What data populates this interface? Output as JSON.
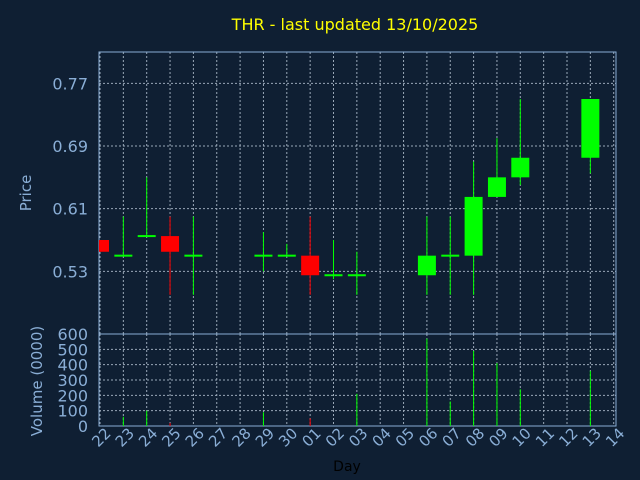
{
  "chart_data": {
    "type": "candlestick",
    "title": "THR - last updated 13/10/2025",
    "xlabel": "Day",
    "price_axis": {
      "ylabel": "Price",
      "ylim": [
        0.45,
        0.81
      ],
      "ticks": [
        "0.53",
        "0.61",
        "0.69",
        "0.77"
      ]
    },
    "volume_axis": {
      "ylabel": "Volume (0000)",
      "ylim": [
        0,
        600
      ],
      "ticks": [
        "0",
        "100",
        "200",
        "300",
        "400",
        "500",
        "600"
      ]
    },
    "grid": true,
    "colors": {
      "background": "#0f1f33",
      "plot_bg": "#0f1f33",
      "up": "#00ff00",
      "down": "#ff0000",
      "title": "#ffff00",
      "axis_text": "#8aaed6",
      "grid": "#9aa8b8"
    },
    "days": [
      {
        "label": "22",
        "open": 0.57,
        "high": 0.57,
        "low": 0.555,
        "close": 0.555,
        "volume": 0
      },
      {
        "label": "23",
        "open": 0.55,
        "high": 0.6,
        "low": 0.55,
        "close": 0.55,
        "volume": 60
      },
      {
        "label": "24",
        "open": 0.575,
        "high": 0.65,
        "low": 0.575,
        "close": 0.575,
        "volume": 100
      },
      {
        "label": "25",
        "open": 0.575,
        "high": 0.6,
        "low": 0.5,
        "close": 0.555,
        "volume": 20
      },
      {
        "label": "26",
        "open": 0.55,
        "high": 0.6,
        "low": 0.5,
        "close": 0.55,
        "volume": 0
      },
      {
        "label": "27",
        "open": null,
        "high": null,
        "low": null,
        "close": null,
        "volume": 0
      },
      {
        "label": "28",
        "open": null,
        "high": null,
        "low": null,
        "close": null,
        "volume": 0
      },
      {
        "label": "29",
        "open": 0.55,
        "high": 0.58,
        "low": 0.53,
        "close": 0.55,
        "volume": 90
      },
      {
        "label": "30",
        "open": 0.55,
        "high": 0.565,
        "low": 0.55,
        "close": 0.55,
        "volume": 0
      },
      {
        "label": "01",
        "open": 0.55,
        "high": 0.6,
        "low": 0.5,
        "close": 0.525,
        "volume": 50
      },
      {
        "label": "02",
        "open": 0.525,
        "high": 0.57,
        "low": 0.52,
        "close": 0.525,
        "volume": 0
      },
      {
        "label": "03",
        "open": 0.525,
        "high": 0.555,
        "low": 0.5,
        "close": 0.525,
        "volume": 210
      },
      {
        "label": "04",
        "open": null,
        "high": null,
        "low": null,
        "close": null,
        "volume": 0
      },
      {
        "label": "05",
        "open": null,
        "high": null,
        "low": null,
        "close": null,
        "volume": 0
      },
      {
        "label": "06",
        "open": 0.525,
        "high": 0.6,
        "low": 0.5,
        "close": 0.55,
        "volume": 570
      },
      {
        "label": "07",
        "open": 0.55,
        "high": 0.6,
        "low": 0.5,
        "close": 0.55,
        "volume": 160
      },
      {
        "label": "08",
        "open": 0.55,
        "high": 0.67,
        "low": 0.5,
        "close": 0.625,
        "volume": 490
      },
      {
        "label": "09",
        "open": 0.625,
        "high": 0.7,
        "low": 0.625,
        "close": 0.65,
        "volume": 410
      },
      {
        "label": "10",
        "open": 0.65,
        "high": 0.75,
        "low": 0.64,
        "close": 0.675,
        "volume": 240
      },
      {
        "label": "11",
        "open": null,
        "high": null,
        "low": null,
        "close": null,
        "volume": 0
      },
      {
        "label": "12",
        "open": null,
        "high": null,
        "low": null,
        "close": null,
        "volume": 0
      },
      {
        "label": "13",
        "open": 0.675,
        "high": 0.75,
        "low": 0.655,
        "close": 0.75,
        "volume": 360
      },
      {
        "label": "14",
        "open": null,
        "high": null,
        "low": null,
        "close": null,
        "volume": null
      }
    ]
  }
}
